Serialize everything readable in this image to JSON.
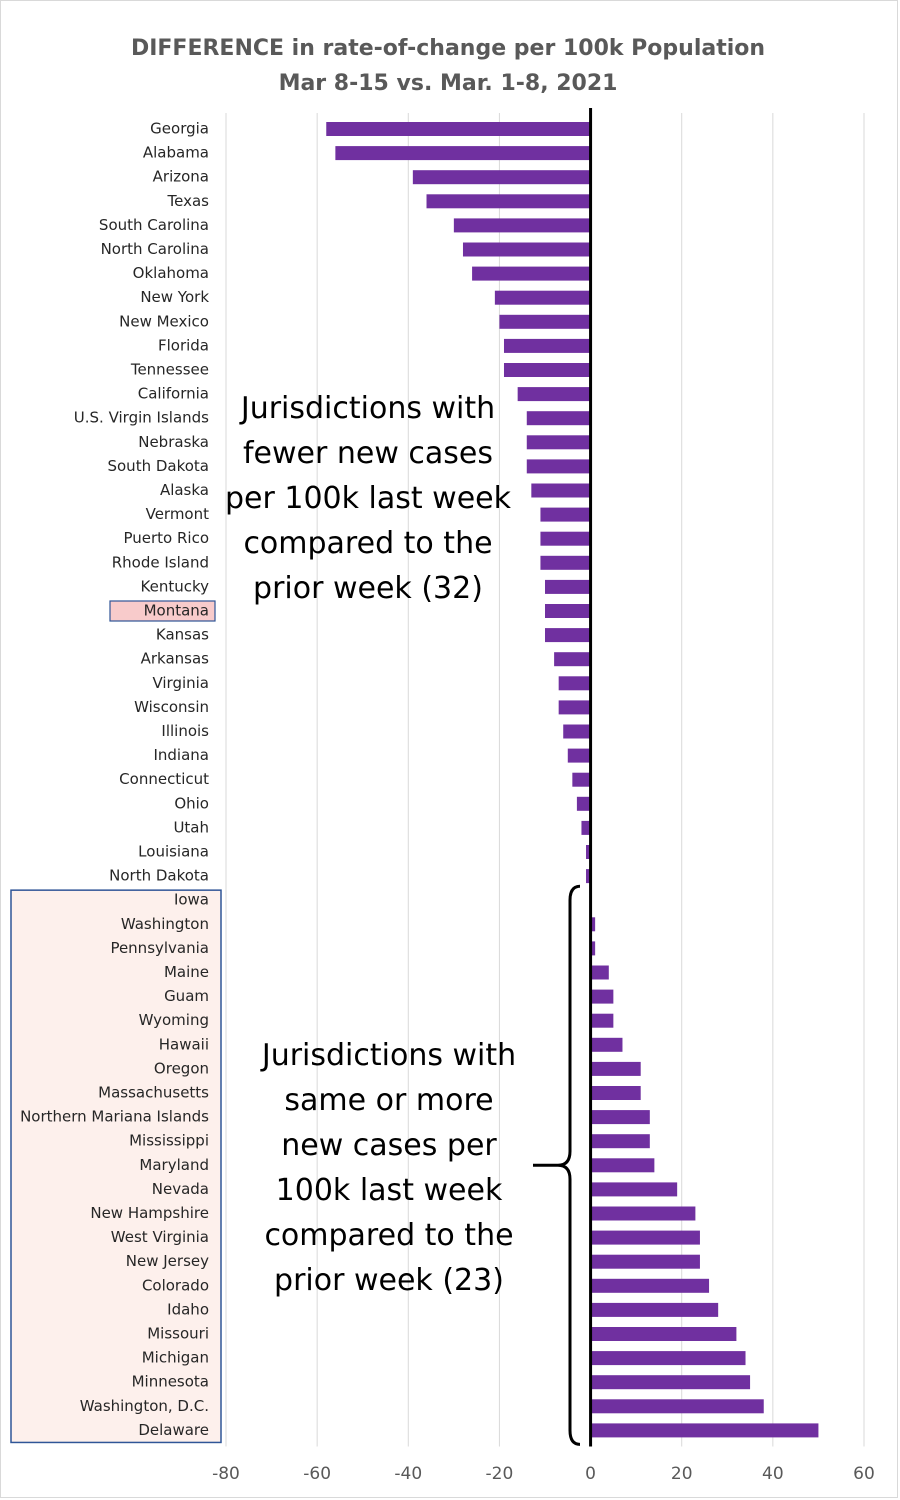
{
  "chart_data": {
    "type": "bar",
    "orientation": "horizontal",
    "title": "DIFFERENCE in rate-of-change per 100k Population",
    "subtitle": "Mar 8-15 vs. Mar. 1-8, 2021",
    "xlim": [
      -80,
      60
    ],
    "x_ticks": [
      -80,
      -60,
      -40,
      -20,
      0,
      20,
      40,
      60
    ],
    "x_tick_labels": [
      "-80",
      "-60",
      "-40",
      "-20",
      "0",
      "20",
      "40",
      "60"
    ],
    "grid": "vertical",
    "bar_color": "#7030a0",
    "categories": [
      "Georgia",
      "Alabama",
      "Arizona",
      "Texas",
      "South Carolina",
      "North Carolina",
      "Oklahoma",
      "New York",
      "New Mexico",
      "Florida",
      "Tennessee",
      "California",
      "U.S. Virgin Islands",
      "Nebraska",
      "South Dakota",
      "Alaska",
      "Vermont",
      "Puerto Rico",
      "Rhode Island",
      "Kentucky",
      "Montana",
      "Kansas",
      "Arkansas",
      "Virginia",
      "Wisconsin",
      "Illinois",
      "Indiana",
      "Connecticut",
      "Ohio",
      "Utah",
      "Louisiana",
      "North Dakota",
      "Iowa",
      "Washington",
      "Pennsylvania",
      "Maine",
      "Guam",
      "Wyoming",
      "Hawaii",
      "Oregon",
      "Massachusetts",
      "Northern Mariana Islands",
      "Mississippi",
      "Maryland",
      "Nevada",
      "New Hampshire",
      "West Virginia",
      "New Jersey",
      "Colorado",
      "Idaho",
      "Missouri",
      "Michigan",
      "Minnesota",
      "Washington, D.C.",
      "Delaware"
    ],
    "values": [
      -58,
      -56,
      -39,
      -36,
      -30,
      -28,
      -26,
      -21,
      -20,
      -19,
      -19,
      -16,
      -14,
      -14,
      -14,
      -13,
      -11,
      -11,
      -11,
      -10,
      -10,
      -10,
      -8,
      -7,
      -7,
      -6,
      -5,
      -4,
      -3,
      -2,
      -1,
      -1,
      0,
      1,
      1,
      4,
      5,
      5,
      7,
      11,
      11,
      13,
      13,
      14,
      19,
      23,
      24,
      24,
      26,
      28,
      32,
      34,
      35,
      38,
      50
    ],
    "highlighted_category": "Montana",
    "highlight_fill": "#f8cbcb",
    "highlight_border": "#2f5597",
    "group_box_fill": "#fdf0ec",
    "group_box_border": "#2f5597",
    "annotations": [
      {
        "lines": [
          "Jurisdictions with",
          "fewer new cases",
          "per 100k last week",
          "compared to the",
          "prior week (32)"
        ]
      },
      {
        "lines": [
          "Jurisdictions with",
          "same or more",
          "new cases per",
          "100k last week",
          "compared to the",
          "prior week (23)"
        ]
      }
    ]
  }
}
